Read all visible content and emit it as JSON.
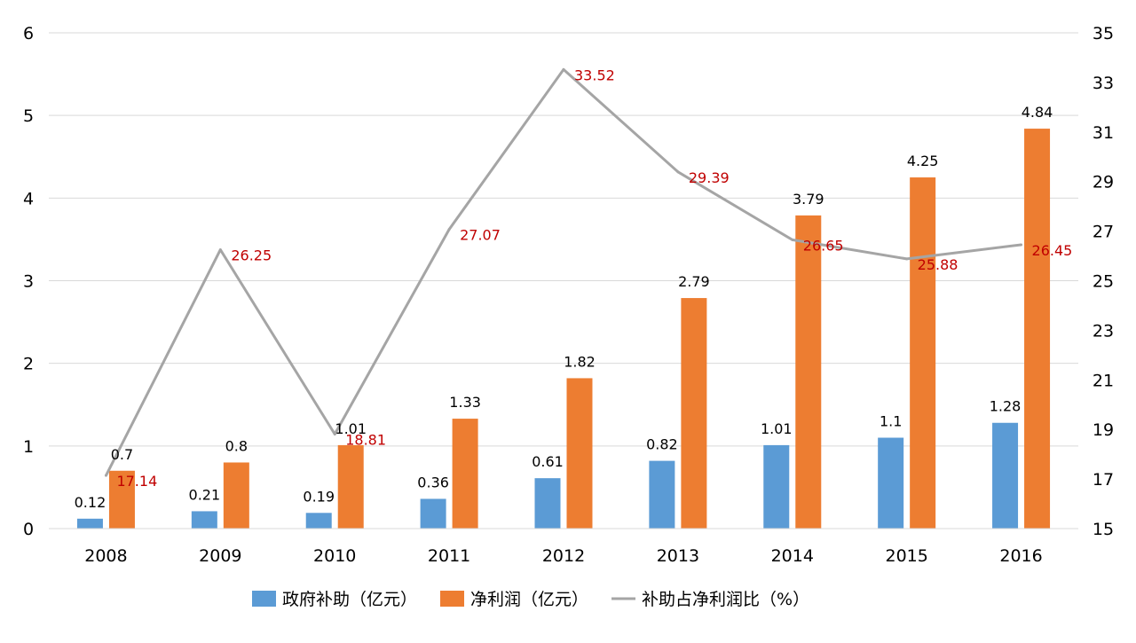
{
  "chart_data": {
    "type": "bar",
    "categories": [
      "2008",
      "2009",
      "2010",
      "2011",
      "2012",
      "2013",
      "2014",
      "2015",
      "2016"
    ],
    "series": [
      {
        "name": "政府补助（亿元）",
        "type": "bar",
        "axis": "left",
        "color": "#5b9bd5",
        "values": [
          0.12,
          0.21,
          0.19,
          0.36,
          0.61,
          0.82,
          1.01,
          1.1,
          1.28
        ]
      },
      {
        "name": "净利润（亿元）",
        "type": "bar",
        "axis": "left",
        "color": "#ed7d31",
        "values": [
          0.7,
          0.8,
          1.01,
          1.33,
          1.82,
          2.79,
          3.79,
          4.25,
          4.84
        ]
      },
      {
        "name": "补助占净利润比（%）",
        "type": "line",
        "axis": "right",
        "color": "#a5a5a5",
        "label_color": "#c00000",
        "values": [
          17.14,
          26.25,
          18.81,
          27.07,
          33.52,
          29.39,
          26.65,
          25.88,
          26.45
        ]
      }
    ],
    "y_left": {
      "ticks": [
        "0",
        "1",
        "2",
        "3",
        "4",
        "5",
        "6"
      ],
      "range": [
        0,
        6
      ]
    },
    "y_right": {
      "ticks": [
        "15",
        "17",
        "19",
        "21",
        "23",
        "25",
        "27",
        "29",
        "31",
        "33",
        "35"
      ],
      "range": [
        15,
        35
      ]
    },
    "grid": true,
    "legend_position": "bottom"
  }
}
